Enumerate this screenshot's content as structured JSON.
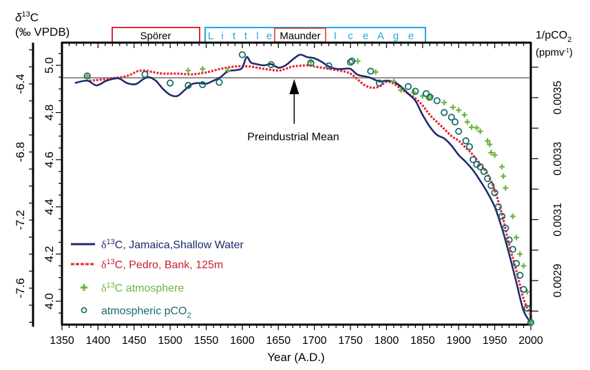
{
  "chart_data": {
    "type": "line",
    "title": "",
    "xlabel": "Year (A.D.)",
    "xlim": [
      1350,
      2000
    ],
    "x_ticks": [
      1350,
      1400,
      1450,
      1500,
      1550,
      1600,
      1650,
      1700,
      1750,
      1800,
      1850,
      1900,
      1950,
      2000
    ],
    "left_outer_axis": {
      "label_line1": "δ13C",
      "label_symbol": "δ",
      "label_sup": "13",
      "label_tail": "C",
      "label_line2": "(‰ VPDB)",
      "ticks": [
        "-6.4",
        "-6.8",
        "-7.2",
        "-7.6"
      ],
      "tick_values": [
        -6.4,
        -6.8,
        -7.2,
        -7.6
      ]
    },
    "left_inner_axis": {
      "ylim": [
        3.9,
        5.1
      ],
      "ticks": [
        "5.0",
        "4.8",
        "4.6",
        "4.4",
        "4.2",
        "4.0"
      ],
      "tick_values": [
        5.0,
        4.8,
        4.6,
        4.4,
        4.2,
        4.0
      ]
    },
    "right_axis": {
      "label_line1_main": "1/pCO",
      "label_line1_sub": "2",
      "label_line2_main": "(ppmv",
      "label_line2_sup": "-1",
      "label_line2_tail": ")",
      "ticks": [
        "0.0035",
        "0.0033",
        "0.0031",
        "0.0029"
      ],
      "tick_values": [
        0.0035,
        0.0033,
        0.0031,
        0.0029
      ]
    },
    "periods": [
      {
        "name": "Spörer",
        "start": 1420,
        "end": 1540,
        "color": "#e0262c",
        "style": "solid-text"
      },
      {
        "name": "Little Ice Age",
        "letters": [
          "L",
          "i",
          "t",
          "t",
          "l",
          "e",
          "",
          "I",
          "c",
          "e",
          "A",
          "g",
          "e"
        ],
        "start": 1548,
        "end": 1853,
        "color": "#1ea7e1"
      },
      {
        "name": "Maunder",
        "start": 1645,
        "end": 1715,
        "color": "#e0262c"
      }
    ],
    "little_ice_age_left": [
      "L",
      "i",
      "t",
      "t",
      "l",
      "e"
    ],
    "little_ice_age_right": [
      "I",
      "c",
      "e",
      "A",
      "g",
      "e"
    ],
    "reference_line": {
      "name": "Preindustrial Mean",
      "value": 4.947,
      "color": "#948b8b"
    },
    "annotation": {
      "text": "Preindustrial Mean",
      "arrow_year": 1672
    },
    "series": [
      {
        "name": "δ13C, Jamaica, Shallow Water",
        "legend_sup": "13",
        "legend_tail": "C, Jamaica,Shallow Water",
        "color": "#1f2a6b",
        "style": "solid",
        "x": [
          1368,
          1385,
          1398,
          1412,
          1428,
          1440,
          1452,
          1462,
          1470,
          1480,
          1490,
          1500,
          1510,
          1520,
          1530,
          1540,
          1550,
          1560,
          1570,
          1580,
          1592,
          1600,
          1606,
          1612,
          1620,
          1630,
          1640,
          1650,
          1660,
          1670,
          1680,
          1690,
          1700,
          1710,
          1720,
          1730,
          1740,
          1750,
          1760,
          1775,
          1790,
          1800,
          1810,
          1820,
          1830,
          1840,
          1850,
          1860,
          1870,
          1880,
          1890,
          1900,
          1910,
          1920,
          1930,
          1940,
          1950,
          1960,
          1970,
          1980,
          1990,
          2000
        ],
        "values": [
          4.925,
          4.935,
          4.915,
          4.935,
          4.945,
          4.925,
          4.92,
          4.94,
          4.95,
          4.935,
          4.9,
          4.875,
          4.87,
          4.895,
          4.92,
          4.925,
          4.922,
          4.935,
          4.95,
          4.975,
          4.98,
          4.99,
          5.035,
          5.012,
          5.005,
          5.0,
          5.005,
          4.99,
          5.0,
          5.025,
          5.045,
          5.035,
          5.03,
          5.015,
          4.995,
          4.985,
          4.985,
          4.985,
          4.96,
          4.95,
          4.932,
          4.935,
          4.93,
          4.91,
          4.88,
          4.85,
          4.79,
          4.74,
          4.705,
          4.69,
          4.66,
          4.62,
          4.59,
          4.555,
          4.51,
          4.46,
          4.4,
          4.31,
          4.2,
          4.08,
          3.96,
          3.91
        ]
      },
      {
        "name": "δ13C, Pedro, Bank, 125m",
        "legend_sup": "13",
        "legend_tail": "C, Pedro, Bank, 125m",
        "color": "#e8242e",
        "style": "dotted",
        "x": [
          1388,
          1400,
          1420,
          1440,
          1455,
          1465,
          1475,
          1490,
          1510,
          1530,
          1550,
          1570,
          1590,
          1610,
          1630,
          1650,
          1660,
          1670,
          1690,
          1700,
          1720,
          1740,
          1750,
          1760,
          1770,
          1780,
          1790,
          1800,
          1810,
          1820,
          1830,
          1840,
          1850,
          1860,
          1870,
          1880,
          1890,
          1900,
          1910,
          1920,
          1930,
          1940,
          1950,
          1960,
          1970,
          1980,
          1990,
          2000
        ],
        "values": [
          4.935,
          4.938,
          4.945,
          4.955,
          4.975,
          4.978,
          4.972,
          4.965,
          4.965,
          4.962,
          4.97,
          4.985,
          4.995,
          4.995,
          4.985,
          4.978,
          4.985,
          4.995,
          5.0,
          4.995,
          4.985,
          4.975,
          4.965,
          4.94,
          4.915,
          4.905,
          4.91,
          4.93,
          4.922,
          4.9,
          4.88,
          4.86,
          4.83,
          4.79,
          4.76,
          4.73,
          4.7,
          4.68,
          4.65,
          4.62,
          4.58,
          4.54,
          4.47,
          4.37,
          4.24,
          4.13,
          4.01,
          3.94
        ]
      },
      {
        "name": "δ13C atmosphere",
        "legend_sup": "13",
        "legend_tail": "C atmosphere",
        "color": "#6db33f",
        "style": "plus",
        "x": [
          1385,
          1525,
          1545,
          1580,
          1695,
          1760,
          1785,
          1810,
          1820,
          1838,
          1850,
          1858,
          1862,
          1880,
          1892,
          1900,
          1908,
          1912,
          1918,
          1925,
          1930,
          1940,
          1943,
          1945,
          1950,
          1960,
          1962,
          1965,
          1975,
          1980,
          1985,
          1990,
          1995,
          2000
        ],
        "values": [
          4.955,
          4.978,
          4.985,
          4.978,
          5.015,
          5.018,
          4.972,
          4.932,
          4.895,
          4.885,
          4.87,
          4.86,
          4.87,
          4.842,
          4.822,
          4.81,
          4.79,
          4.76,
          4.738,
          4.735,
          4.72,
          4.68,
          4.665,
          4.63,
          4.62,
          4.57,
          4.53,
          4.48,
          4.36,
          4.27,
          4.2,
          4.15,
          4.04,
          3.91
        ]
      },
      {
        "name": "atmospheric pCO2",
        "legend_main": "atmospheric pCO",
        "legend_sub": "2",
        "color": "#1a6a6a",
        "style": "circle",
        "x": [
          1385,
          1465,
          1500,
          1525,
          1545,
          1568,
          1600,
          1640,
          1695,
          1720,
          1750,
          1752,
          1778,
          1790,
          1830,
          1840,
          1855,
          1860,
          1870,
          1880,
          1890,
          1895,
          1900,
          1910,
          1915,
          1920,
          1925,
          1930,
          1935,
          1940,
          1945,
          1950,
          1955,
          1960,
          1965,
          1970,
          1975,
          1980,
          1985,
          1990,
          1995,
          2000
        ],
        "values": [
          4.955,
          4.962,
          4.925,
          4.915,
          4.918,
          4.928,
          5.045,
          5.003,
          5.01,
          4.998,
          5.013,
          5.018,
          4.975,
          4.925,
          4.91,
          4.89,
          4.88,
          4.865,
          4.85,
          4.8,
          4.78,
          4.76,
          4.72,
          4.68,
          4.655,
          4.6,
          4.58,
          4.57,
          4.55,
          4.52,
          4.49,
          4.46,
          4.4,
          4.36,
          4.31,
          4.26,
          4.22,
          4.16,
          4.11,
          4.05,
          3.97,
          3.91
        ]
      }
    ],
    "legend_position": "bottom-left"
  }
}
